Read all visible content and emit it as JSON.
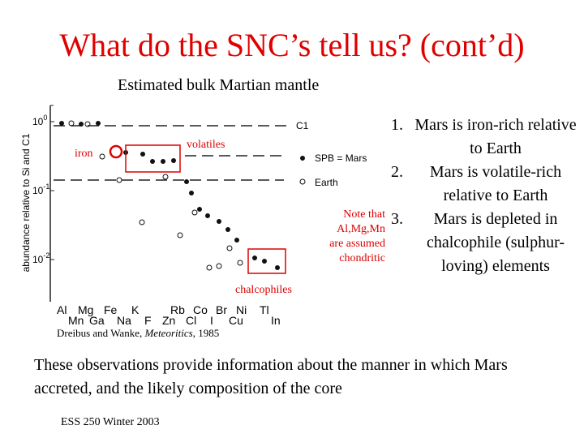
{
  "title": "What do the SNC’s tell us? (cont’d)",
  "subtitle": "Estimated bulk Martian mantle",
  "figure": {
    "y_axis_label": "abundance relative to Si and C1",
    "y_ticks": [
      {
        "base": "10",
        "exp": "0"
      },
      {
        "base": "10",
        "exp": "-1"
      },
      {
        "base": "10",
        "exp": "-2"
      }
    ],
    "reference_labels": [
      "C1",
      "SPB = Mars",
      "Earth"
    ],
    "elements_top": [
      "Al",
      "Mg",
      "Fe",
      "K",
      "Rb",
      "Co",
      "Br",
      "Ni",
      "Tl"
    ],
    "elements_bottom": [
      "Mn",
      "Ga",
      "Na",
      "F",
      "Zn",
      "Cl",
      "I",
      "Cu",
      "In"
    ],
    "annotations": {
      "iron": "iron",
      "volatiles": "volatiles",
      "chalcophiles": "chalcophiles",
      "note": [
        "Note that",
        "Al,Mg,Mn",
        "are assumed",
        "chondritic"
      ]
    },
    "citation": {
      "authors": "Dreibus and Wanke, ",
      "journal": "Meteoritics",
      "year": ", 1985"
    }
  },
  "points": [
    "Mars is iron-rich relative to Earth",
    "Mars is volatile-rich relative to Earth",
    "Mars is depleted in chalcophile (sulphur-loving) elements"
  ],
  "conclusion": "These observations provide information about the manner in which Mars accreted, and the likely composition of the core",
  "footer": "ESS 250 Winter 2003"
}
